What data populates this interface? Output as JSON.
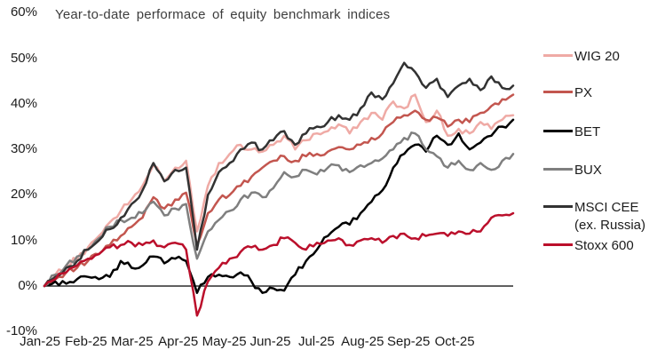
{
  "chart_data": {
    "type": "line",
    "title": "Year-to-date performace of equity benchmark indices",
    "unit": "percent (year-to-date return)",
    "x_description": "weekly points from Jan-25 to late Oct-25",
    "ylim": [
      -10,
      60
    ],
    "grid": false,
    "zero_line": true,
    "legend_position": "right",
    "axis_color": "#000000",
    "text_color": "#1c1c1c",
    "xticks": [
      "Jan-25",
      "Feb-25",
      "Mar-25",
      "Apr-25",
      "May-25",
      "Jun-25",
      "Jul-25",
      "Aug-25",
      "Sep-25",
      "Oct-25"
    ],
    "yticks": [
      {
        "label": "60%",
        "value": 60
      },
      {
        "label": "50%",
        "value": 50
      },
      {
        "label": "40%",
        "value": 40
      },
      {
        "label": "30%",
        "value": 30
      },
      {
        "label": "20%",
        "value": 20
      },
      {
        "label": "10%",
        "value": 10
      },
      {
        "label": "0%",
        "value": 0
      },
      {
        "label": "-10%",
        "value": -10
      }
    ],
    "series": [
      {
        "name": "WIG 20",
        "color": "#efaaa5",
        "values": [
          0,
          2.5,
          4.5,
          6,
          8.5,
          11,
          14,
          16.5,
          19,
          22,
          26.5,
          23,
          26,
          27.5,
          12,
          22,
          27,
          29,
          31,
          30,
          29.5,
          31,
          33,
          30,
          32,
          33.5,
          34,
          35.5,
          33.5,
          36,
          38,
          36.5,
          40.5,
          39,
          42,
          36,
          38.5,
          33,
          34.5,
          33.5,
          36,
          34.5,
          36.5,
          37.5
        ]
      },
      {
        "name": "PX",
        "color": "#c3564f",
        "values": [
          0,
          1.5,
          3,
          4,
          5.5,
          7,
          9,
          11,
          13,
          15,
          19.5,
          17,
          19,
          20.5,
          9,
          16,
          19,
          20,
          22,
          24,
          26,
          27.5,
          28.5,
          27.5,
          28.5,
          29,
          29.5,
          30.5,
          30,
          31,
          32.5,
          33.5,
          36,
          37.5,
          38.5,
          36.5,
          37,
          35,
          36.5,
          36,
          38,
          39.5,
          41,
          42
        ]
      },
      {
        "name": "BET",
        "color": "#000000",
        "values": [
          0,
          1,
          0.5,
          1.5,
          2,
          1.5,
          2,
          5.5,
          4,
          4.5,
          6.5,
          5,
          6,
          5.5,
          -1.5,
          2,
          2.5,
          2,
          3,
          1,
          -1.5,
          -0.5,
          -1,
          2.5,
          5.5,
          8,
          11,
          13,
          13.5,
          16,
          18.5,
          21,
          26,
          29,
          31,
          29.5,
          33,
          31,
          33.5,
          30,
          31.5,
          33,
          35,
          36.5
        ]
      },
      {
        "name": "BUX",
        "color": "#7f7f7f",
        "values": [
          0,
          2.5,
          4.5,
          6.5,
          8,
          10.5,
          13,
          14.5,
          15,
          16,
          18.5,
          15.5,
          17,
          18,
          6,
          12,
          14.5,
          16.5,
          19,
          20.5,
          19.5,
          21.5,
          25,
          24,
          25.5,
          24.5,
          26,
          26.5,
          25,
          26.5,
          27,
          28,
          30,
          32.5,
          33.5,
          30,
          28.5,
          26,
          27.5,
          25.5,
          27,
          25.5,
          27.5,
          29
        ]
      },
      {
        "name": "MSCI CEE (ex. Russia)",
        "color": "#323232",
        "values": [
          0,
          2,
          4,
          5.5,
          8,
          10,
          12.5,
          15,
          18,
          21,
          27,
          23,
          25.5,
          26,
          8,
          20,
          25,
          27,
          30,
          31.5,
          30,
          32,
          34,
          31,
          33.5,
          35,
          36,
          37.5,
          36.5,
          39,
          42.5,
          41,
          44.5,
          49,
          47,
          43.5,
          45.5,
          41.5,
          44,
          45.5,
          43,
          46,
          43.5,
          44
        ]
      },
      {
        "name": "Stoxx 600",
        "color": "#bb0f2b",
        "values": [
          0,
          1.5,
          3,
          4.5,
          6,
          7,
          8.5,
          9,
          9.5,
          9,
          10,
          8.5,
          9.5,
          8,
          -6.5,
          1,
          4,
          6,
          7.5,
          8.5,
          8,
          9,
          10.5,
          9.5,
          8,
          9.5,
          10,
          10.5,
          9,
          10,
          10.5,
          9.5,
          11,
          11.5,
          10.5,
          11,
          11.5,
          11,
          12,
          11.5,
          12,
          15,
          15.5,
          16
        ]
      }
    ]
  }
}
